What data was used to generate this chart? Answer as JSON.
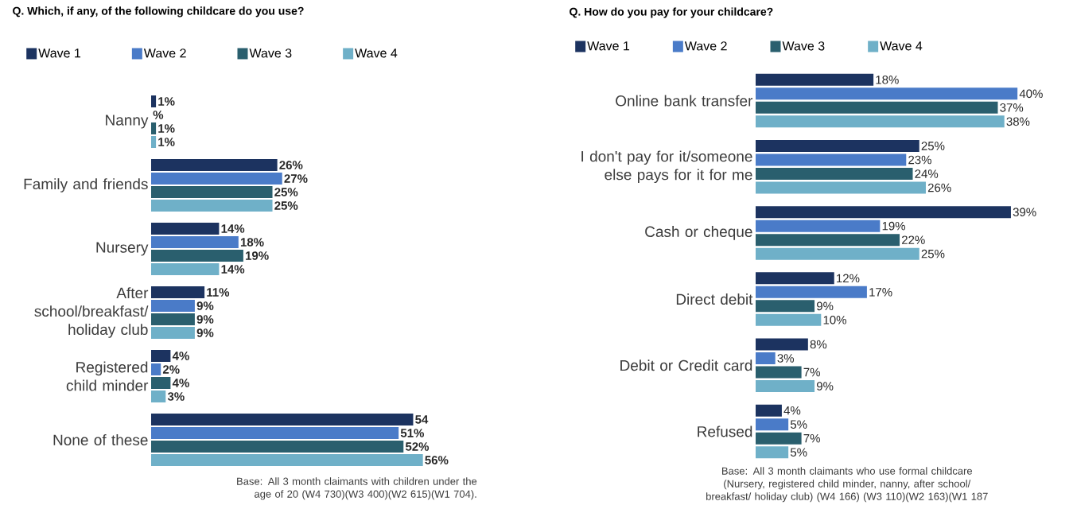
{
  "chart_data": [
    {
      "type": "bar",
      "orientation": "horizontal",
      "title": "Q. Which, if any, of the following childcare do you use?",
      "legend": "top left",
      "categories": [
        "Nanny",
        "Family and friends",
        "Nursery",
        "After school/breakfast/ holiday club",
        "Registered child minder",
        "None of these"
      ],
      "series": [
        {
          "name": "Wave 1",
          "color": "#1c3360",
          "values": [
            1,
            26,
            14,
            11,
            4,
            54
          ],
          "value_labels": [
            "1%",
            "26%",
            "14%",
            "11%",
            "4%",
            "54"
          ]
        },
        {
          "name": "Wave 2",
          "color": "#4a7bc8",
          "values": [
            0,
            27,
            18,
            9,
            2,
            51
          ],
          "value_labels": [
            "%",
            "27%",
            "18%",
            "9%",
            "2%",
            "51%"
          ]
        },
        {
          "name": "Wave 3",
          "color": "#2a5f6e",
          "values": [
            1,
            25,
            19,
            9,
            4,
            52
          ],
          "value_labels": [
            "1%",
            "25%",
            "19%",
            "9%",
            "4%",
            "52%"
          ]
        },
        {
          "name": "Wave 4",
          "color": "#6fb0c8",
          "values": [
            1,
            25,
            14,
            9,
            3,
            56
          ],
          "value_labels": [
            "1%",
            "25%",
            "14%",
            "9%",
            "3%",
            "56%"
          ]
        }
      ],
      "annotations": [
        "Base: All 3 month claimants with children under the age of 20 (W4 730)(W3 400)(W2 615)(W1 704)."
      ]
    },
    {
      "type": "bar",
      "orientation": "horizontal",
      "title": "Q. How do you pay for your childcare?",
      "legend": "top left",
      "categories": [
        "Online bank transfer",
        "I don't pay for it/someone else pays for it for me",
        "Cash or cheque",
        "Direct debit",
        "Debit or Credit card",
        "Refused"
      ],
      "series": [
        {
          "name": "Wave 1",
          "color": "#1c3360",
          "values": [
            18,
            25,
            39,
            12,
            8,
            4
          ],
          "value_labels": [
            "18%",
            "25%",
            "39%",
            "12%",
            "8%",
            "4%"
          ]
        },
        {
          "name": "Wave 2",
          "color": "#4a7bc8",
          "values": [
            40,
            23,
            19,
            17,
            3,
            5
          ],
          "value_labels": [
            "40%",
            "23%",
            "19%",
            "17%",
            "3%",
            "5%"
          ]
        },
        {
          "name": "Wave 3",
          "color": "#2a5f6e",
          "values": [
            37,
            24,
            22,
            9,
            7,
            7
          ],
          "value_labels": [
            "37%",
            "24%",
            "22%",
            "9%",
            "7%",
            "7%"
          ]
        },
        {
          "name": "Wave 4",
          "color": "#6fb0c8",
          "values": [
            38,
            26,
            25,
            10,
            9,
            5
          ],
          "value_labels": [
            "38%",
            "26%",
            "25%",
            "10%",
            "9%",
            "5%"
          ]
        }
      ],
      "annotations": [
        "Base: All 3 month claimants who use formal childcare (Nursery, registered child minder, nanny, after school/ breakfast/ holiday club) (W4 166) (W3 110)(W2 163)(W1 187"
      ]
    }
  ]
}
